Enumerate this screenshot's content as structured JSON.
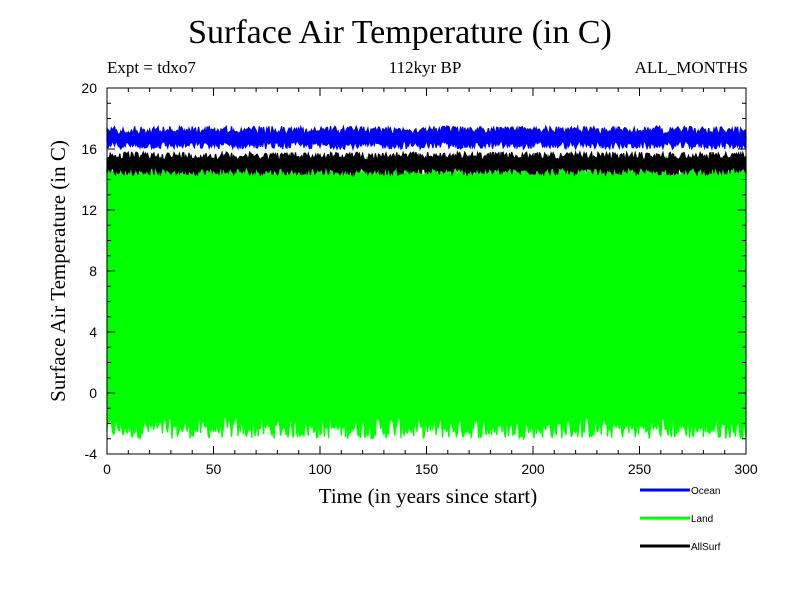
{
  "header": {
    "title": "Surface Air Temperature (in C)",
    "experiment": "Expt = tdxo7",
    "period": "112kyr BP",
    "months": "ALL_MONTHS"
  },
  "chart_data": {
    "type": "area",
    "title": "Surface Air Temperature (in C)",
    "xlabel": "Time (in years since start)",
    "ylabel": "Surface Air Temperature (in C)",
    "xlim": [
      0,
      300
    ],
    "ylim": [
      -4,
      20
    ],
    "xticks": [
      0,
      50,
      100,
      150,
      200,
      250,
      300
    ],
    "yticks": [
      -4,
      0,
      4,
      8,
      12,
      16,
      20
    ],
    "grid": false,
    "legend_position": "bottom-right",
    "series": [
      {
        "name": "Ocean",
        "color": "#0000ff",
        "min": 16.0,
        "max": 17.5,
        "mean": 16.8
      },
      {
        "name": "Land",
        "color": "#00ff00",
        "min": -3.0,
        "max": 15.5,
        "mean": 6.5
      },
      {
        "name": "AllSurf",
        "color": "#000000",
        "min": 14.3,
        "max": 15.8,
        "mean": 15.1
      }
    ]
  }
}
